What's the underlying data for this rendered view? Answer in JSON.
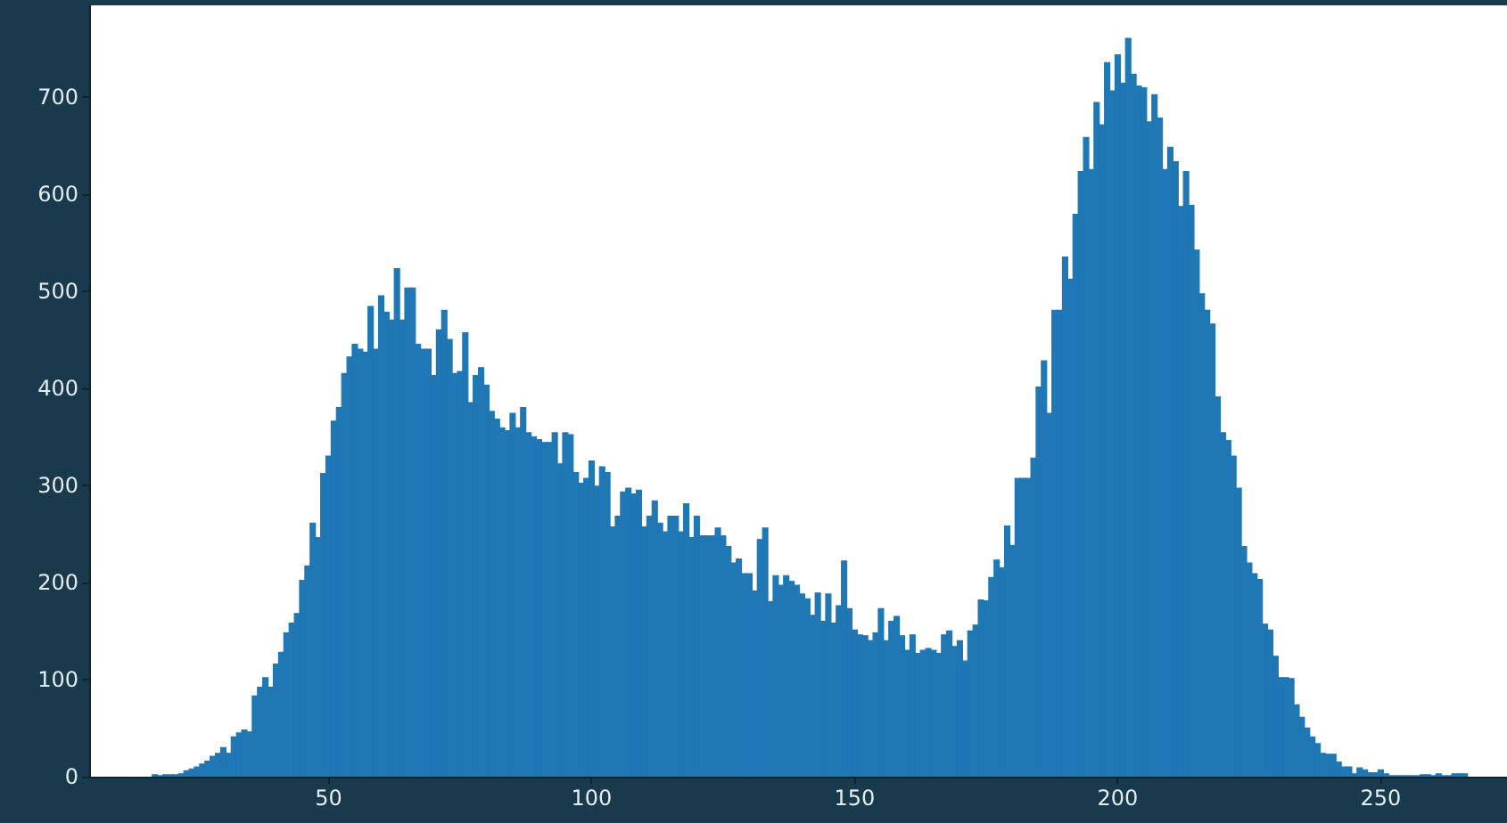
{
  "chart_data": {
    "type": "histogram",
    "color": "#1f77b4",
    "bins": [
      16.5,
      17.5,
      18.5,
      19.5,
      20.5,
      21.5,
      22.5,
      23.5,
      24.5,
      25.5,
      26.5,
      27.5,
      28.5,
      29.5,
      30.5,
      31.5,
      32.5,
      33.5,
      34.5,
      35.5,
      36.5,
      37.5,
      38.5,
      39.5,
      40.5,
      41.5,
      42.5,
      43.5,
      44.5,
      45.5,
      46.5,
      47.5,
      48.5,
      49.5,
      50.5,
      51.5,
      52.5,
      53.5,
      54.5,
      55.5,
      56.5,
      57.5,
      58.5,
      59.5,
      60.5,
      61.5,
      62.5,
      63.5,
      64.5,
      65.5,
      66.5,
      67.5,
      68.5,
      69.5,
      70.5,
      71.5,
      72.5,
      73.5,
      74.5,
      75.5,
      76.5,
      77.5,
      78.5,
      79.5,
      80.5,
      81.5,
      82.5,
      83.5,
      84.5,
      85.5,
      86.5,
      87.5,
      88.5,
      89.5,
      90.5,
      91.5,
      92.5,
      93.5,
      94.5,
      95.5,
      96.5,
      97.5,
      98.5,
      99.5,
      100.5,
      101.5,
      102.5,
      103.5,
      104.5,
      105.5,
      106.5,
      107.5,
      108.5,
      109.5,
      110.5,
      111.5,
      112.5,
      113.5,
      114.5,
      115.5,
      116.5,
      117.5,
      118.5,
      119.5,
      120.5,
      121.5,
      122.5,
      123.5,
      124.5,
      125.5,
      126.5,
      127.5,
      128.5,
      129.5,
      130.5,
      131.5,
      132.5,
      133.5,
      134.5,
      135.5,
      136.5,
      137.5,
      138.5,
      139.5,
      140.5,
      141.5,
      142.5,
      143.5,
      144.5,
      145.5,
      146.5,
      147.5,
      148.5,
      149.5,
      150.5,
      151.5,
      152.5,
      153.5,
      154.5,
      155.5,
      156.5,
      157.5,
      158.5,
      159.5,
      160.5,
      161.5,
      162.5,
      163.5,
      164.5,
      165.5,
      166.5,
      167.5,
      168.5,
      169.5,
      170.5,
      171.5,
      172.5,
      173.5,
      174.5,
      175.5,
      176.5,
      177.5,
      178.5,
      179.5,
      180.5,
      181.5,
      182.5,
      183.5,
      184.5,
      185.5,
      186.5,
      187.5,
      188.5,
      189.5,
      190.5,
      191.5,
      192.5,
      193.5,
      194.5,
      195.5,
      196.5,
      197.5,
      198.5,
      199.5,
      200.5,
      201.5,
      202.5,
      203.5,
      204.5,
      205.5,
      206.5,
      207.5,
      208.5,
      209.5,
      210.5,
      211.5,
      212.5,
      213.5,
      214.5,
      215.5,
      216.5,
      217.5,
      218.5,
      219.5,
      220.5,
      221.5,
      222.5,
      223.5,
      224.5,
      225.5,
      226.5,
      227.5,
      228.5,
      229.5,
      230.5,
      231.5,
      232.5,
      233.5,
      234.5,
      235.5,
      236.5,
      237.5,
      238.5,
      239.5,
      240.5,
      241.5,
      242.5,
      243.5,
      244.5,
      245.5,
      246.5,
      247.5,
      248.5,
      249.5,
      250.5,
      251.5,
      252.5,
      253.5,
      254.5,
      255.5,
      256.5,
      257.5,
      258.5,
      259.5,
      260.5,
      261.5,
      262.5,
      263.5,
      264.5,
      265.5,
      266.5
    ],
    "values": [
      2,
      1,
      2,
      2,
      2,
      3,
      6,
      8,
      10,
      13,
      16,
      21,
      24,
      30,
      24,
      41,
      45,
      48,
      46,
      83,
      92,
      102,
      92,
      116,
      128,
      148,
      158,
      168,
      202,
      217,
      261,
      246,
      312,
      330,
      366,
      380,
      415,
      432,
      445,
      440,
      437,
      484,
      440,
      495,
      478,
      470,
      523,
      470,
      503,
      503,
      445,
      440,
      440,
      413,
      460,
      480,
      450,
      415,
      417,
      457,
      385,
      413,
      421,
      403,
      376,
      368,
      359,
      356,
      374,
      359,
      380,
      354,
      350,
      347,
      344,
      344,
      354,
      322,
      354,
      352,
      313,
      302,
      307,
      325,
      299,
      319,
      313,
      257,
      268,
      293,
      297,
      291,
      295,
      257,
      268,
      284,
      261,
      252,
      268,
      268,
      252,
      281,
      246,
      268,
      248,
      248,
      248,
      256,
      248,
      237,
      220,
      224,
      209,
      209,
      191,
      244,
      256,
      180,
      207,
      197,
      207,
      201,
      197,
      188,
      183,
      166,
      189,
      160,
      188,
      158,
      176,
      222,
      173,
      151,
      146,
      145,
      140,
      148,
      173,
      140,
      160,
      165,
      145,
      130,
      146,
      127,
      130,
      132,
      130,
      127,
      146,
      150,
      134,
      140,
      119,
      150,
      156,
      182,
      181,
      205,
      223,
      215,
      258,
      238,
      307,
      307,
      307,
      328,
      401,
      428,
      374,
      480,
      480,
      535,
      512,
      579,
      623,
      658,
      625,
      694,
      671,
      735,
      706,
      743,
      714,
      760,
      723,
      711,
      709,
      674,
      702,
      678,
      625,
      648,
      633,
      587,
      623,
      588,
      542,
      497,
      480,
      466,
      391,
      354,
      346,
      330,
      297,
      237,
      220,
      209,
      203,
      157,
      151,
      124,
      102,
      102,
      101,
      74,
      61,
      50,
      41,
      34,
      24,
      23,
      23,
      15,
      10,
      10,
      3,
      9,
      7,
      4,
      4,
      7,
      3,
      1,
      1,
      1,
      1,
      1,
      1,
      2,
      2,
      1,
      3,
      1,
      1,
      3,
      3,
      3
    ],
    "xlim": [
      4.5,
      274
    ],
    "ylim": [
      0,
      794
    ],
    "xticks": [
      50,
      100,
      150,
      200,
      250
    ],
    "yticks": [
      0,
      100,
      200,
      300,
      400,
      500,
      600,
      700
    ]
  }
}
